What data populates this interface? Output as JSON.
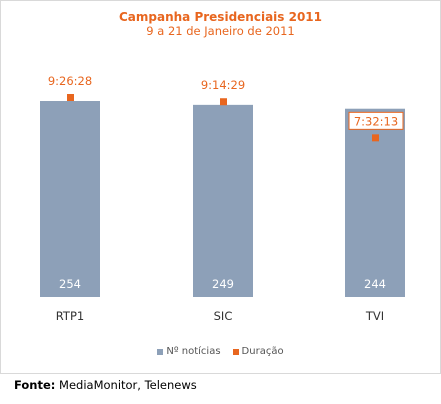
{
  "chart_data": {
    "type": "bar",
    "title": "Campanha Presidenciais 2011",
    "subtitle": "9 a 21 de Janeiro de 2011",
    "categories": [
      "RTP1",
      "SIC",
      "TVI"
    ],
    "series": [
      {
        "name": "Nº notícias",
        "values": [
          254,
          249,
          244
        ],
        "color": "#8da0b8"
      },
      {
        "name": "Duração",
        "values": [
          "9:26:28",
          "9:14:29",
          "7:32:13"
        ],
        "color": "#e8661f"
      }
    ],
    "legend_position": "bottom",
    "grid": false
  },
  "source": {
    "label": "Fonte:",
    "text": "MediaMonitor, Telenews"
  }
}
